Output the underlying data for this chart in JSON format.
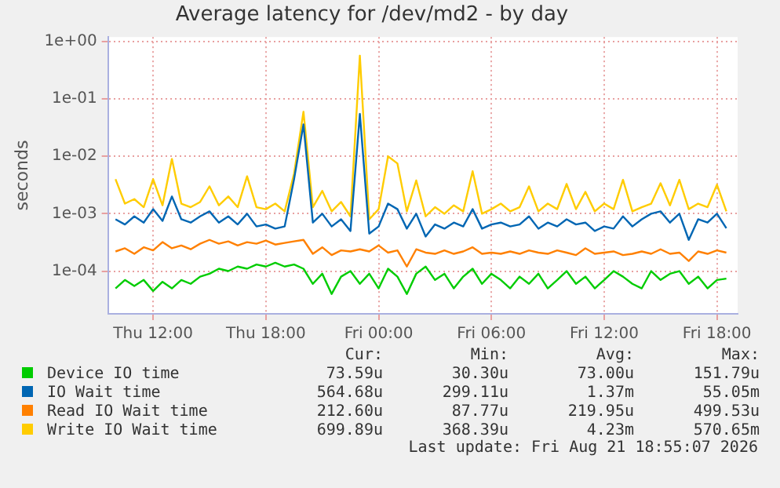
{
  "chart_data": {
    "type": "line",
    "title": "Average latency for /dev/md2 - by day",
    "ylabel": "seconds",
    "log": true,
    "grid": true,
    "legend": "bottom",
    "marker": "none",
    "line_style": "solid",
    "xlim": [
      "2026-08-20T09:36",
      "2026-08-21T19:06"
    ],
    "xticks": [
      {
        "value": "2026-08-20T12:00",
        "label": "Thu 12:00"
      },
      {
        "value": "2026-08-20T18:00",
        "label": "Thu 18:00"
      },
      {
        "value": "2026-08-21T00:00",
        "label": "Fri 00:00"
      },
      {
        "value": "2026-08-21T06:00",
        "label": "Fri 06:00"
      },
      {
        "value": "2026-08-21T12:00",
        "label": "Fri 12:00"
      },
      {
        "value": "2026-08-21T18:00",
        "label": "Fri 18:00"
      }
    ],
    "ylim": [
      1.8e-05,
      1.2
    ],
    "yticks": [
      {
        "value": 1,
        "label": "1e+00"
      },
      {
        "value": 0.1,
        "label": "1e-01"
      },
      {
        "value": 0.01,
        "label": "1e-02"
      },
      {
        "value": 0.001,
        "label": "1e-03"
      },
      {
        "value": 0.0001,
        "label": "1e-04"
      }
    ],
    "x": [
      "2026-08-20T10:00",
      "2026-08-20T10:30",
      "2026-08-20T11:00",
      "2026-08-20T11:30",
      "2026-08-20T12:00",
      "2026-08-20T12:30",
      "2026-08-20T13:00",
      "2026-08-20T13:30",
      "2026-08-20T14:00",
      "2026-08-20T14:30",
      "2026-08-20T15:00",
      "2026-08-20T15:30",
      "2026-08-20T16:00",
      "2026-08-20T16:30",
      "2026-08-20T17:00",
      "2026-08-20T17:30",
      "2026-08-20T18:00",
      "2026-08-20T18:30",
      "2026-08-20T19:00",
      "2026-08-20T19:30",
      "2026-08-20T20:00",
      "2026-08-20T20:30",
      "2026-08-20T21:00",
      "2026-08-20T21:30",
      "2026-08-20T22:00",
      "2026-08-20T22:30",
      "2026-08-20T23:00",
      "2026-08-20T23:30",
      "2026-08-21T00:00",
      "2026-08-21T00:30",
      "2026-08-21T01:00",
      "2026-08-21T01:30",
      "2026-08-21T02:00",
      "2026-08-21T02:30",
      "2026-08-21T03:00",
      "2026-08-21T03:30",
      "2026-08-21T04:00",
      "2026-08-21T04:30",
      "2026-08-21T05:00",
      "2026-08-21T05:30",
      "2026-08-21T06:00",
      "2026-08-21T06:30",
      "2026-08-21T07:00",
      "2026-08-21T07:30",
      "2026-08-21T08:00",
      "2026-08-21T08:30",
      "2026-08-21T09:00",
      "2026-08-21T09:30",
      "2026-08-21T10:00",
      "2026-08-21T10:30",
      "2026-08-21T11:00",
      "2026-08-21T11:30",
      "2026-08-21T12:00",
      "2026-08-21T12:30",
      "2026-08-21T13:00",
      "2026-08-21T13:30",
      "2026-08-21T14:00",
      "2026-08-21T14:30",
      "2026-08-21T15:00",
      "2026-08-21T15:30",
      "2026-08-21T16:00",
      "2026-08-21T16:30",
      "2026-08-21T17:00",
      "2026-08-21T17:30",
      "2026-08-21T18:00",
      "2026-08-21T18:30"
    ],
    "series": [
      {
        "name": "Device IO time",
        "color": "#00cc00",
        "values": [
          5e-05,
          7e-05,
          5.5e-05,
          7e-05,
          4.5e-05,
          6.5e-05,
          5e-05,
          7e-05,
          6e-05,
          8e-05,
          9e-05,
          0.00011,
          0.0001,
          0.00012,
          0.00011,
          0.00013,
          0.00012,
          0.00014,
          0.00012,
          0.00013,
          0.00011,
          6e-05,
          9e-05,
          4e-05,
          8e-05,
          0.0001,
          6e-05,
          9e-05,
          5e-05,
          0.00011,
          8e-05,
          4e-05,
          9e-05,
          0.00012,
          7e-05,
          9e-05,
          5e-05,
          8e-05,
          0.00011,
          6e-05,
          9e-05,
          7e-05,
          5e-05,
          8e-05,
          6e-05,
          9e-05,
          5e-05,
          7e-05,
          0.0001,
          6e-05,
          8e-05,
          5e-05,
          7e-05,
          0.0001,
          8e-05,
          6e-05,
          5e-05,
          0.0001,
          7e-05,
          9e-05,
          0.0001,
          6e-05,
          8e-05,
          5e-05,
          7e-05,
          7.4e-05
        ]
      },
      {
        "name": "IO Wait time",
        "color": "#0066b3",
        "values": [
          0.0008,
          0.00065,
          0.0009,
          0.0007,
          0.0012,
          0.00075,
          0.002,
          0.0008,
          0.0007,
          0.0009,
          0.0011,
          0.0007,
          0.0009,
          0.00065,
          0.001,
          0.0006,
          0.00065,
          0.00055,
          0.0006,
          0.004,
          0.036,
          0.0007,
          0.001,
          0.0006,
          0.0008,
          0.0005,
          0.055,
          0.00045,
          0.0006,
          0.0015,
          0.0012,
          0.00055,
          0.001,
          0.0004,
          0.00065,
          0.00055,
          0.0007,
          0.0006,
          0.0012,
          0.00055,
          0.00065,
          0.0007,
          0.0006,
          0.00065,
          0.0009,
          0.00055,
          0.0007,
          0.0006,
          0.0008,
          0.00065,
          0.0007,
          0.0005,
          0.0006,
          0.00055,
          0.0009,
          0.0006,
          0.0008,
          0.001,
          0.0011,
          0.0007,
          0.001,
          0.00035,
          0.0008,
          0.0007,
          0.001,
          0.00056
        ]
      },
      {
        "name": "Read IO Wait time",
        "color": "#ff8000",
        "values": [
          0.00022,
          0.00025,
          0.0002,
          0.00026,
          0.00023,
          0.00032,
          0.00025,
          0.00028,
          0.00024,
          0.0003,
          0.00035,
          0.0003,
          0.00033,
          0.00028,
          0.00032,
          0.0003,
          0.00034,
          0.00029,
          0.00031,
          0.00033,
          0.00035,
          0.0002,
          0.00026,
          0.00019,
          0.00023,
          0.00022,
          0.00024,
          0.00022,
          0.00028,
          0.00021,
          0.00023,
          0.00012,
          0.00024,
          0.00021,
          0.0002,
          0.00023,
          0.0002,
          0.00022,
          0.00026,
          0.0002,
          0.00021,
          0.0002,
          0.00022,
          0.0002,
          0.00023,
          0.00021,
          0.0002,
          0.00023,
          0.00021,
          0.00019,
          0.00025,
          0.0002,
          0.00021,
          0.00022,
          0.00019,
          0.0002,
          0.00022,
          0.0002,
          0.00024,
          0.0002,
          0.00021,
          0.00015,
          0.00022,
          0.0002,
          0.00023,
          0.00021
        ]
      },
      {
        "name": "Write IO Wait time",
        "color": "#ffcc00",
        "values": [
          0.004,
          0.0015,
          0.0018,
          0.0013,
          0.004,
          0.0014,
          0.009,
          0.0015,
          0.0013,
          0.0016,
          0.003,
          0.0014,
          0.002,
          0.0013,
          0.0045,
          0.0013,
          0.0012,
          0.0015,
          0.0011,
          0.005,
          0.06,
          0.0013,
          0.0025,
          0.0011,
          0.0016,
          0.0009,
          0.57,
          0.0008,
          0.0012,
          0.01,
          0.0075,
          0.0011,
          0.0038,
          0.0009,
          0.0013,
          0.001,
          0.0014,
          0.0011,
          0.0055,
          0.001,
          0.0012,
          0.0015,
          0.0011,
          0.0013,
          0.003,
          0.0011,
          0.0015,
          0.0012,
          0.0033,
          0.0012,
          0.0024,
          0.0011,
          0.0015,
          0.0012,
          0.0039,
          0.0011,
          0.0013,
          0.0015,
          0.0034,
          0.0014,
          0.0039,
          0.0012,
          0.0015,
          0.0013,
          0.0032,
          0.0011
        ]
      }
    ],
    "annotations": [
      "Cur:",
      "Min:",
      "Avg:",
      "Max:",
      "73.59u",
      "30.30u",
      "73.00u",
      "151.79u",
      "564.68u",
      "299.11u",
      "1.37m",
      "55.05m",
      "212.60u",
      "87.77u",
      "219.95u",
      "499.53u",
      "699.89u",
      "368.39u",
      "4.23m",
      "570.65m",
      "Last update: Fri Aug 21 18:55:07 2026"
    ]
  }
}
